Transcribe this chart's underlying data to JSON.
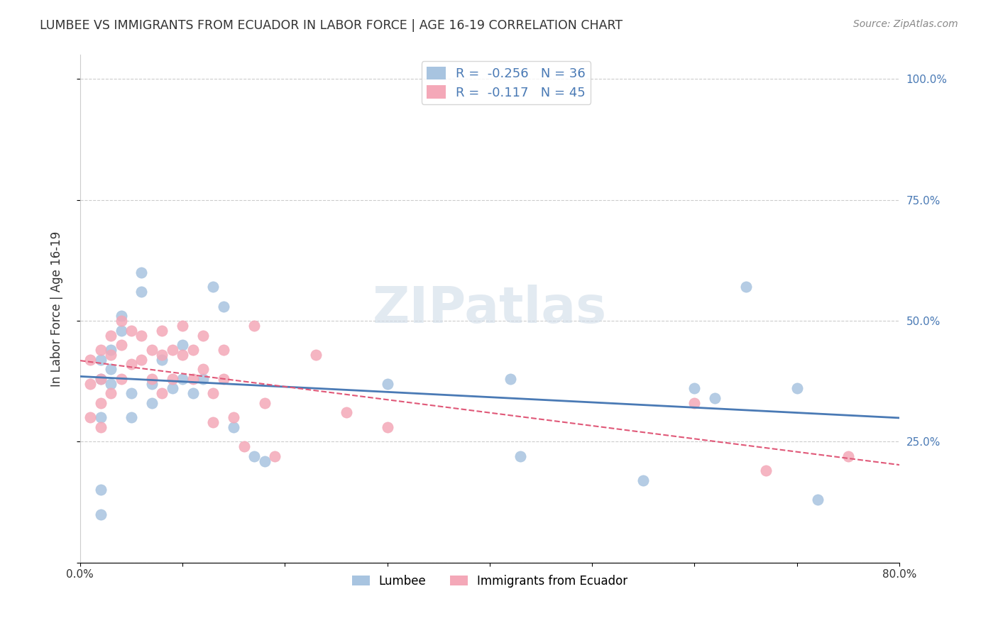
{
  "title": "LUMBEE VS IMMIGRANTS FROM ECUADOR IN LABOR FORCE | AGE 16-19 CORRELATION CHART",
  "source": "Source: ZipAtlas.com",
  "ylabel": "In Labor Force | Age 16-19",
  "xlim": [
    0.0,
    0.8
  ],
  "ylim": [
    0.0,
    1.05
  ],
  "lumbee_color": "#a8c4e0",
  "ecuador_color": "#f4a8b8",
  "lumbee_line_color": "#4a7ab5",
  "ecuador_line_color": "#e05878",
  "lumbee_R": -0.256,
  "lumbee_N": 36,
  "ecuador_R": -0.117,
  "ecuador_N": 45,
  "lumbee_x": [
    0.02,
    0.02,
    0.02,
    0.02,
    0.02,
    0.03,
    0.03,
    0.03,
    0.04,
    0.04,
    0.05,
    0.05,
    0.06,
    0.06,
    0.07,
    0.07,
    0.08,
    0.09,
    0.1,
    0.1,
    0.11,
    0.12,
    0.13,
    0.14,
    0.15,
    0.17,
    0.18,
    0.3,
    0.42,
    0.43,
    0.55,
    0.6,
    0.62,
    0.65,
    0.7,
    0.72
  ],
  "lumbee_y": [
    0.42,
    0.38,
    0.3,
    0.15,
    0.1,
    0.44,
    0.4,
    0.37,
    0.51,
    0.48,
    0.35,
    0.3,
    0.56,
    0.6,
    0.37,
    0.33,
    0.42,
    0.36,
    0.45,
    0.38,
    0.35,
    0.38,
    0.57,
    0.53,
    0.28,
    0.22,
    0.21,
    0.37,
    0.38,
    0.22,
    0.17,
    0.36,
    0.34,
    0.57,
    0.36,
    0.13
  ],
  "ecuador_x": [
    0.01,
    0.01,
    0.01,
    0.02,
    0.02,
    0.02,
    0.02,
    0.03,
    0.03,
    0.03,
    0.04,
    0.04,
    0.04,
    0.05,
    0.05,
    0.06,
    0.06,
    0.07,
    0.07,
    0.08,
    0.08,
    0.08,
    0.09,
    0.09,
    0.1,
    0.1,
    0.11,
    0.11,
    0.12,
    0.12,
    0.13,
    0.13,
    0.14,
    0.14,
    0.15,
    0.16,
    0.17,
    0.18,
    0.19,
    0.23,
    0.26,
    0.3,
    0.6,
    0.67,
    0.75
  ],
  "ecuador_y": [
    0.42,
    0.37,
    0.3,
    0.44,
    0.38,
    0.33,
    0.28,
    0.47,
    0.43,
    0.35,
    0.5,
    0.45,
    0.38,
    0.48,
    0.41,
    0.47,
    0.42,
    0.44,
    0.38,
    0.48,
    0.43,
    0.35,
    0.44,
    0.38,
    0.49,
    0.43,
    0.44,
    0.38,
    0.47,
    0.4,
    0.35,
    0.29,
    0.44,
    0.38,
    0.3,
    0.24,
    0.49,
    0.33,
    0.22,
    0.43,
    0.31,
    0.28,
    0.33,
    0.19,
    0.22
  ],
  "legend_label1": "Lumbee",
  "legend_label2": "Immigrants from Ecuador"
}
